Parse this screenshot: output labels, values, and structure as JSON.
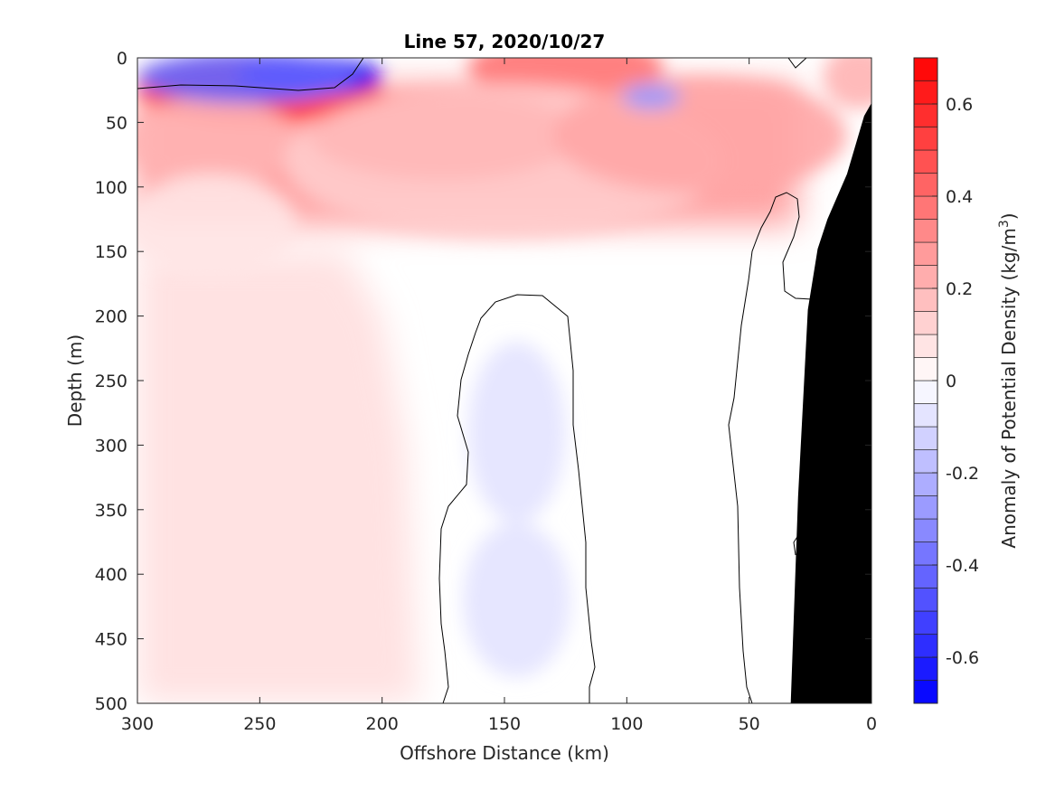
{
  "chart_data": {
    "type": "heatmap",
    "title": "Line 57, 2020/10/27",
    "xlabel": "Offshore Distance (km)",
    "ylabel": "Depth (m)",
    "xlim": [
      300,
      0
    ],
    "ylim": [
      0,
      500
    ],
    "x_reversed": true,
    "y_reversed": true,
    "x_ticks": [
      300,
      250,
      200,
      150,
      100,
      50,
      0
    ],
    "y_ticks": [
      0,
      50,
      100,
      150,
      200,
      250,
      300,
      350,
      400,
      450,
      500
    ],
    "colorbar": {
      "label": "Anomaly of Potential Density (kg/m",
      "label_superscript": "3",
      "label_close": ")",
      "range": [
        -0.7,
        0.7
      ],
      "ticks": [
        -0.6,
        -0.4,
        -0.2,
        0,
        0.2,
        0.4,
        0.6
      ],
      "tick_labels": [
        "-0.6",
        "-0.4",
        "-0.2",
        "0",
        "0.2",
        "0.4",
        "0.6"
      ],
      "levels": 28,
      "negative_color": "#0000ff",
      "positive_color": "#ff0000",
      "neutral_color": "#ffffff"
    },
    "zero_contour_color": "#000000",
    "bathymetry_color": "#000000",
    "bathymetry": [
      [
        33,
        500
      ],
      [
        0,
        500
      ],
      [
        0,
        35
      ],
      [
        3,
        45
      ],
      [
        10,
        90
      ],
      [
        18,
        125
      ],
      [
        22,
        148
      ],
      [
        26,
        195
      ],
      [
        30,
        340
      ],
      [
        33,
        500
      ]
    ],
    "features": [
      {
        "x": 250,
        "z": 25,
        "value": 0.8,
        "sx": 50,
        "sz": 25
      },
      {
        "x": 175,
        "z": 60,
        "value": 1.0,
        "sx": 55,
        "sz": 35
      },
      {
        "x": 270,
        "z": 65,
        "value": 0.3,
        "sx": 35,
        "sz": 35
      },
      {
        "x": 125,
        "z": 8,
        "value": 0.55,
        "sx": 40,
        "sz": 25
      },
      {
        "x": 150,
        "z": 80,
        "value": 0.2,
        "sx": 90,
        "sz": 60
      },
      {
        "x": 70,
        "z": 60,
        "value": 0.35,
        "sx": 60,
        "sz": 45
      },
      {
        "x": 5,
        "z": 15,
        "value": 0.3,
        "sx": 15,
        "sz": 25
      },
      {
        "x": 230,
        "z": 14,
        "value": -1.6,
        "sx": 30,
        "sz": 15
      },
      {
        "x": 255,
        "z": 15,
        "value": -0.6,
        "sx": 45,
        "sz": 20
      },
      {
        "x": 270,
        "z": 130,
        "value": 0.1,
        "sx": 35,
        "sz": 40
      },
      {
        "x": 145,
        "z": 290,
        "value": -0.11,
        "sx": 20,
        "sz": 70
      },
      {
        "x": 145,
        "z": 420,
        "value": -0.11,
        "sx": 22,
        "sz": 60
      },
      {
        "x": 90,
        "z": 30,
        "value": -0.4,
        "sx": 12,
        "sz": 10
      }
    ]
  }
}
